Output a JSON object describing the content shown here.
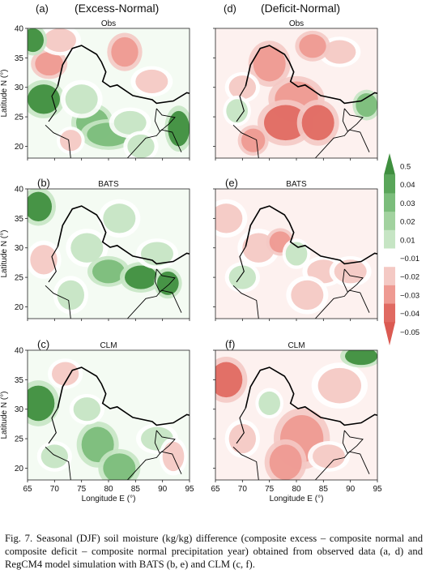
{
  "figure": {
    "columns": [
      {
        "letter_top": "(a)",
        "title": "(Excess-Normal)"
      },
      {
        "letter_top": "(d)",
        "title": "(Deficit-Normal)"
      }
    ],
    "caption": "Fig. 7. Seasonal (DJF) soil moisture (kg/kg) difference (composite excess – composite normal and composite deficit – composite normal precipitation year) obtained from observed data (a, d) and RegCM4 model simulation with BATS (b, e) and CLM (c, f)."
  },
  "colors": {
    "green_dark": "#3f8f3f",
    "green_mid": "#7bbd7b",
    "green_light": "#c6e5c4",
    "red_light": "#f4c9c4",
    "red_mid": "#ee9a92",
    "red_dark": "#e06a62",
    "boundary": "#000000"
  },
  "chart_data": {
    "type": "heatmap",
    "variable": "Seasonal (DJF) soil moisture difference (kg/kg)",
    "xlabel": "Longitude E (°)",
    "ylabel": "Latitude N (°)",
    "xlim": [
      65,
      95
    ],
    "ylim": [
      18,
      40
    ],
    "xticks": [
      65,
      70,
      75,
      80,
      85,
      90,
      95
    ],
    "yticks": [
      20,
      25,
      30,
      35,
      40
    ],
    "colorbar": {
      "labels": [
        "0.5",
        "0.04",
        "0.03",
        "0.02",
        "0.01",
        "−0.01",
        "−0.02",
        "−0.03",
        "−0.04",
        "−0.05"
      ],
      "colors": [
        "#3f8f3f",
        "#5aa65a",
        "#7bbd7b",
        "#a2d29f",
        "#c6e5c4",
        "#ffffff",
        "#f4c9c4",
        "#ee9a92",
        "#e06a62",
        "#db5a52"
      ]
    },
    "panels": [
      {
        "letter": "(a)",
        "subtitle": "Obs",
        "dominant": "green",
        "blobs": [
          [
            69,
            34,
            2.6,
            2,
            -0.03
          ],
          [
            68,
            28,
            3,
            2.5,
            0.04
          ],
          [
            77,
            24,
            3,
            2.5,
            0.03
          ],
          [
            75,
            28,
            3,
            2.5,
            0.02
          ],
          [
            80,
            22,
            4,
            2,
            0.03
          ],
          [
            84,
            24,
            3,
            2,
            0.02
          ],
          [
            71,
            38,
            3,
            2,
            -0.02
          ],
          [
            83,
            36,
            2.5,
            2.5,
            -0.03
          ],
          [
            88,
            31,
            3,
            2,
            -0.02
          ],
          [
            93,
            23,
            2,
            3,
            0.04
          ],
          [
            66,
            38,
            2,
            2,
            0.04
          ],
          [
            86,
            20,
            2.5,
            2,
            0.02
          ],
          [
            73,
            21,
            2,
            1.8,
            -0.02
          ]
        ]
      },
      {
        "letter": "(d)",
        "subtitle": "Obs",
        "dominant": "red",
        "blobs": [
          [
            75,
            34,
            3,
            3,
            -0.03
          ],
          [
            80,
            28,
            4,
            3,
            -0.03
          ],
          [
            78,
            24,
            4,
            3,
            -0.04
          ],
          [
            84,
            24,
            3,
            3,
            -0.04
          ],
          [
            70,
            30,
            2.5,
            2,
            -0.02
          ],
          [
            69,
            26,
            2,
            2,
            0.02
          ],
          [
            88,
            36,
            3,
            2,
            -0.02
          ],
          [
            93,
            27,
            2,
            2,
            0.03
          ],
          [
            83,
            37,
            2.5,
            2,
            -0.03
          ],
          [
            72,
            21,
            2.2,
            2,
            -0.03
          ]
        ]
      },
      {
        "letter": "(b)",
        "subtitle": "BATS",
        "dominant": "green",
        "blobs": [
          [
            67,
            37,
            2.5,
            2.5,
            0.04
          ],
          [
            76,
            30,
            3,
            2.5,
            0.02
          ],
          [
            80,
            26,
            3,
            2,
            0.03
          ],
          [
            86,
            25,
            3,
            2,
            0.04
          ],
          [
            91,
            24,
            2,
            2,
            0.04
          ],
          [
            68,
            28,
            2.5,
            2.5,
            -0.02
          ],
          [
            73,
            22,
            2.5,
            2.5,
            0.01
          ],
          [
            89,
            29,
            3,
            2,
            0.02
          ],
          [
            82,
            35,
            3,
            2.5,
            0.01
          ]
        ]
      },
      {
        "letter": "(e)",
        "subtitle": "BATS",
        "dominant": "red",
        "blobs": [
          [
            67,
            35,
            3,
            2.5,
            -0.02
          ],
          [
            73,
            30,
            3,
            2.5,
            -0.02
          ],
          [
            77,
            31,
            2,
            1.8,
            -0.03
          ],
          [
            80,
            29,
            2,
            2,
            0.02
          ],
          [
            85,
            26,
            3,
            2,
            -0.02
          ],
          [
            90,
            26,
            3,
            2,
            -0.02
          ],
          [
            82,
            22,
            3,
            2.5,
            -0.01
          ],
          [
            70,
            25,
            2.5,
            2,
            0.01
          ]
        ]
      },
      {
        "letter": "(c)",
        "subtitle": "CLM",
        "dominant": "green",
        "blobs": [
          [
            67,
            31,
            3,
            3,
            0.04
          ],
          [
            78,
            24,
            3,
            3,
            0.03
          ],
          [
            82,
            20,
            3,
            2.5,
            0.03
          ],
          [
            89,
            25,
            3,
            2,
            0.02
          ],
          [
            76,
            30,
            2.5,
            2,
            0.02
          ],
          [
            72,
            36,
            2.5,
            2,
            -0.02
          ],
          [
            70,
            22,
            2.5,
            2,
            0.02
          ],
          [
            92,
            22,
            2,
            2.5,
            -0.02
          ]
        ]
      },
      {
        "letter": "(f)",
        "subtitle": "CLM",
        "dominant": "red",
        "blobs": [
          [
            67,
            35,
            3,
            3,
            -0.04
          ],
          [
            81,
            25,
            4,
            4,
            -0.03
          ],
          [
            78,
            21,
            3,
            3,
            -0.03
          ],
          [
            88,
            34,
            4,
            3,
            -0.02
          ],
          [
            92,
            39,
            3,
            1.5,
            0.04
          ],
          [
            70,
            25,
            2.5,
            2.5,
            -0.02
          ],
          [
            86,
            22,
            3,
            2,
            -0.02
          ],
          [
            75,
            31,
            2,
            2,
            0.02
          ]
        ]
      }
    ]
  }
}
